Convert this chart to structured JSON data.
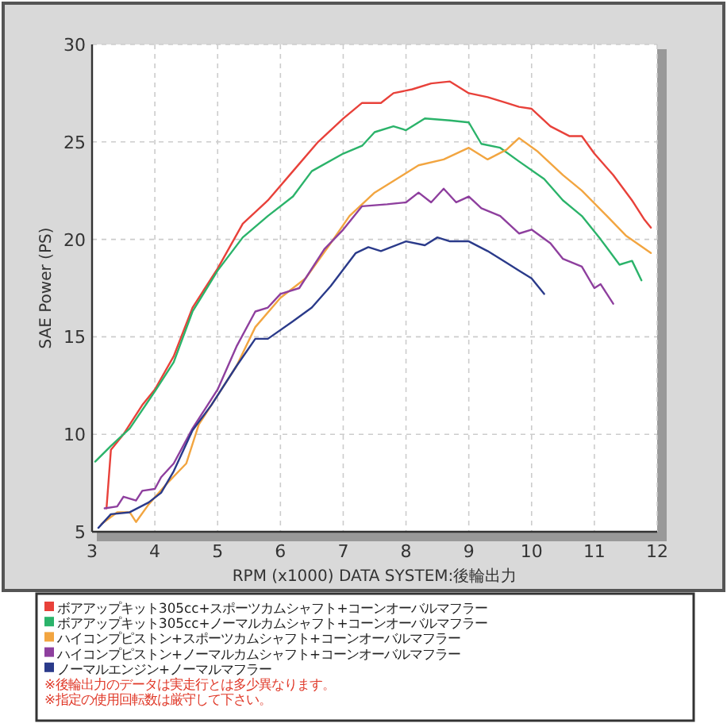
{
  "chart_data": {
    "type": "line",
    "xlabel": "RPM (x1000) DATA SYSTEM:後輪出力",
    "ylabel": "SAE Power (PS)",
    "xlim": [
      3,
      12
    ],
    "ylim": [
      5,
      30
    ],
    "xticks": [
      3,
      4,
      5,
      6,
      7,
      8,
      9,
      10,
      11,
      12
    ],
    "yticks": [
      5,
      10,
      15,
      20,
      25,
      30
    ],
    "grid": true,
    "legend": "bottom",
    "series": [
      {
        "name": "ボアアップキット305cc+スポーツカムシャフト+コーンオーバルマフラー",
        "color": "#e8413a",
        "x": [
          3.23,
          3.3,
          3.5,
          3.8,
          4,
          4.3,
          4.6,
          5,
          5.4,
          5.8,
          6.2,
          6.6,
          7,
          7.3,
          7.6,
          7.8,
          8.1,
          8.4,
          8.7,
          9,
          9.3,
          9.6,
          9.8,
          10,
          10.3,
          10.6,
          10.8,
          11,
          11.3,
          11.6,
          11.8,
          11.9
        ],
        "values": [
          6.2,
          9.2,
          10,
          11.5,
          12.3,
          14,
          16.5,
          18.5,
          20.8,
          22,
          23.5,
          25,
          26.2,
          27,
          27,
          27.5,
          27.7,
          28,
          28.1,
          27.5,
          27.3,
          27,
          26.8,
          26.7,
          25.8,
          25.3,
          25.3,
          24.4,
          23.3,
          22,
          21,
          20.6
        ]
      },
      {
        "name": "ボアアップキット305cc+ノーマルカムシャフト+コーンオーバルマフラー",
        "color": "#2bb36a",
        "x": [
          3.05,
          3.3,
          3.6,
          4,
          4.3,
          4.6,
          5,
          5.4,
          5.8,
          6.2,
          6.5,
          7,
          7.3,
          7.5,
          7.8,
          8,
          8.3,
          8.7,
          9,
          9.2,
          9.5,
          9.8,
          10.2,
          10.5,
          10.8,
          11.1,
          11.4,
          11.6,
          11.75
        ],
        "values": [
          8.6,
          9.4,
          10.3,
          12.2,
          13.7,
          16.3,
          18.4,
          20.1,
          21.2,
          22.2,
          23.5,
          24.4,
          24.8,
          25.5,
          25.8,
          25.6,
          26.2,
          26.1,
          26,
          24.9,
          24.7,
          24,
          23.1,
          22,
          21.2,
          20,
          18.7,
          18.9,
          17.9
        ]
      },
      {
        "name": "ハイコンプピストン+スポーツカムシャフト+コーンオーバルマフラー",
        "color": "#f2a540",
        "x": [
          3.15,
          3.4,
          3.6,
          3.7,
          3.9,
          4.2,
          4.5,
          4.7,
          5,
          5.3,
          5.6,
          6,
          6.4,
          6.8,
          7.1,
          7.5,
          7.8,
          8.2,
          8.6,
          9,
          9.3,
          9.6,
          9.8,
          10.1,
          10.5,
          10.8,
          11.2,
          11.5,
          11.9
        ],
        "values": [
          5.4,
          6,
          6,
          5.5,
          6.4,
          7.5,
          8.5,
          10.5,
          12,
          13.5,
          15.5,
          17,
          18,
          19.8,
          21.2,
          22.4,
          23,
          23.8,
          24.1,
          24.7,
          24.1,
          24.6,
          25.2,
          24.5,
          23.3,
          22.5,
          21.2,
          20.2,
          19.3
        ]
      },
      {
        "name": "ハイコンプピストン+ノーマルカムシャフト+コーンオーバルマフラー",
        "color": "#8e3f9e",
        "x": [
          3.2,
          3.4,
          3.5,
          3.7,
          3.8,
          4,
          4.1,
          4.3,
          4.6,
          5,
          5.3,
          5.6,
          5.8,
          6,
          6.3,
          6.7,
          7,
          7.3,
          7.7,
          8,
          8.2,
          8.4,
          8.6,
          8.8,
          9,
          9.2,
          9.5,
          9.8,
          10,
          10.3,
          10.5,
          10.8,
          11,
          11.1,
          11.3
        ],
        "values": [
          6.2,
          6.3,
          6.8,
          6.6,
          7.1,
          7.2,
          7.8,
          8.5,
          10.3,
          12.3,
          14.5,
          16.3,
          16.5,
          17.2,
          17.5,
          19.5,
          20.5,
          21.7,
          21.8,
          21.9,
          22.4,
          21.9,
          22.6,
          21.9,
          22.2,
          21.6,
          21.2,
          20.3,
          20.5,
          19.8,
          19,
          18.6,
          17.5,
          17.7,
          16.7
        ]
      },
      {
        "name": "ノーマルエンジン+ノーマルマフラー",
        "color": "#2a3a8a",
        "x": [
          3.1,
          3.3,
          3.6,
          3.9,
          4.1,
          4.3,
          4.6,
          4.9,
          5.3,
          5.6,
          5.8,
          6.2,
          6.5,
          6.8,
          7.2,
          7.4,
          7.6,
          8,
          8.3,
          8.5,
          8.7,
          9,
          9.3,
          9.6,
          9.8,
          10,
          10.2
        ],
        "values": [
          5.2,
          5.9,
          6,
          6.5,
          7,
          8.1,
          10.2,
          11.5,
          13.5,
          14.9,
          14.9,
          15.8,
          16.5,
          17.6,
          19.3,
          19.6,
          19.4,
          19.9,
          19.7,
          20.1,
          19.9,
          19.9,
          19.4,
          18.8,
          18.4,
          18,
          17.2
        ]
      }
    ],
    "annotations": [
      "※後輪出力のデータは実走行とは多少異なります。",
      "※指定の使用回転数は厳守して下さい。"
    ]
  }
}
